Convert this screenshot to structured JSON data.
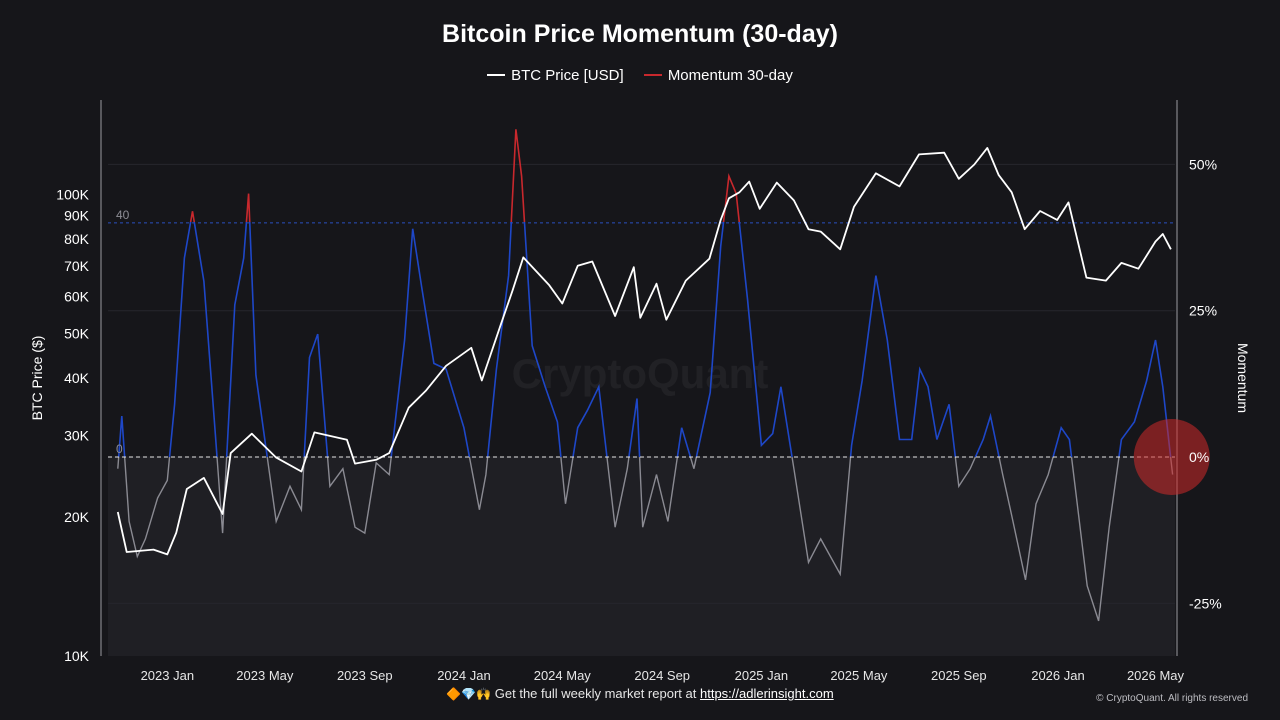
{
  "chart_data": {
    "type": "line",
    "title": "Bitcoin Price Momentum (30-day)",
    "left_axis": {
      "label": "BTC Price ($)",
      "scale": "log",
      "range": [
        10000,
        160000
      ],
      "ticks": [
        {
          "value": 10000,
          "label": "10K"
        },
        {
          "value": 20000,
          "label": "20K"
        },
        {
          "value": 30000,
          "label": "30K"
        },
        {
          "value": 40000,
          "label": "40K"
        },
        {
          "value": 50000,
          "label": "50K"
        },
        {
          "value": 60000,
          "label": "60K"
        },
        {
          "value": 70000,
          "label": "70K"
        },
        {
          "value": 80000,
          "label": "80K"
        },
        {
          "value": 90000,
          "label": "90K"
        },
        {
          "value": 100000,
          "label": "100K"
        }
      ]
    },
    "right_axis": {
      "label": "Momentum",
      "range": [
        -34,
        61
      ],
      "ticks": [
        {
          "value": 50,
          "label": "50%"
        },
        {
          "value": 25,
          "label": "25%"
        },
        {
          "value": 0,
          "label": "0%"
        },
        {
          "value": -25,
          "label": "-25%"
        }
      ]
    },
    "x_axis": {
      "range": [
        "2022-10-20",
        "2026-05-25"
      ],
      "ticks": [
        {
          "date": "2023-01-01",
          "label": "2023 Jan"
        },
        {
          "date": "2023-05-01",
          "label": "2023 May"
        },
        {
          "date": "2023-09-01",
          "label": "2023 Sep"
        },
        {
          "date": "2024-01-01",
          "label": "2024 Jan"
        },
        {
          "date": "2024-05-01",
          "label": "2024 May"
        },
        {
          "date": "2024-09-01",
          "label": "2024 Sep"
        },
        {
          "date": "2025-01-01",
          "label": "2025 Jan"
        },
        {
          "date": "2025-05-01",
          "label": "2025 May"
        },
        {
          "date": "2025-09-01",
          "label": "2025 Sep"
        },
        {
          "date": "2026-01-01",
          "label": "2026 Jan"
        },
        {
          "date": "2026-05-01",
          "label": "2026 May"
        }
      ]
    },
    "reference_lines": [
      {
        "value": 40,
        "label": "40"
      },
      {
        "value": 0,
        "label": "0"
      }
    ],
    "series": [
      {
        "name": "BTC Price [USD]",
        "axis": "left",
        "color": "#ffffff",
        "points": [
          [
            "2022-11-01",
            20500
          ],
          [
            "2022-11-12",
            16800
          ],
          [
            "2022-12-15",
            17000
          ],
          [
            "2023-01-01",
            16600
          ],
          [
            "2023-01-12",
            18500
          ],
          [
            "2023-01-25",
            23000
          ],
          [
            "2023-02-15",
            24300
          ],
          [
            "2023-03-10",
            20300
          ],
          [
            "2023-03-20",
            27500
          ],
          [
            "2023-04-15",
            30300
          ],
          [
            "2023-05-15",
            26900
          ],
          [
            "2023-06-15",
            25100
          ],
          [
            "2023-07-01",
            30500
          ],
          [
            "2023-08-10",
            29400
          ],
          [
            "2023-08-20",
            26100
          ],
          [
            "2023-09-15",
            26600
          ],
          [
            "2023-10-01",
            27500
          ],
          [
            "2023-10-25",
            34500
          ],
          [
            "2023-11-15",
            37500
          ],
          [
            "2023-12-10",
            42500
          ],
          [
            "2024-01-10",
            46500
          ],
          [
            "2024-01-23",
            39500
          ],
          [
            "2024-02-15",
            52000
          ],
          [
            "2024-03-01",
            62000
          ],
          [
            "2024-03-14",
            73000
          ],
          [
            "2024-04-15",
            63500
          ],
          [
            "2024-05-01",
            58000
          ],
          [
            "2024-05-20",
            70000
          ],
          [
            "2024-06-07",
            71500
          ],
          [
            "2024-07-05",
            54500
          ],
          [
            "2024-07-28",
            69500
          ],
          [
            "2024-08-05",
            54000
          ],
          [
            "2024-08-25",
            64000
          ],
          [
            "2024-09-06",
            53500
          ],
          [
            "2024-09-30",
            65000
          ],
          [
            "2024-10-29",
            72500
          ],
          [
            "2024-11-12",
            88000
          ],
          [
            "2024-11-22",
            98000
          ],
          [
            "2024-12-05",
            101000
          ],
          [
            "2024-12-17",
            106500
          ],
          [
            "2024-12-30",
            93000
          ],
          [
            "2025-01-20",
            106000
          ],
          [
            "2025-02-10",
            97000
          ],
          [
            "2025-02-28",
            84000
          ],
          [
            "2025-03-15",
            83000
          ],
          [
            "2025-04-08",
            76000
          ],
          [
            "2025-04-25",
            94000
          ],
          [
            "2025-05-22",
            111000
          ],
          [
            "2025-06-20",
            104000
          ],
          [
            "2025-07-14",
            122000
          ],
          [
            "2025-08-14",
            123000
          ],
          [
            "2025-09-01",
            108000
          ],
          [
            "2025-09-20",
            116000
          ],
          [
            "2025-10-06",
            126000
          ],
          [
            "2025-10-20",
            110000
          ],
          [
            "2025-11-05",
            101000
          ],
          [
            "2025-11-21",
            84000
          ],
          [
            "2025-12-10",
            92000
          ],
          [
            "2025-12-31",
            88000
          ],
          [
            "2026-01-14",
            96000
          ],
          [
            "2026-02-05",
            66000
          ],
          [
            "2026-03-01",
            65000
          ],
          [
            "2026-03-20",
            71000
          ],
          [
            "2026-04-10",
            69000
          ],
          [
            "2026-05-01",
            79000
          ],
          [
            "2026-05-10",
            82000
          ],
          [
            "2026-05-20",
            76000
          ]
        ]
      },
      {
        "name": "Momentum 30-day",
        "axis": "right",
        "color": "#c8282d",
        "points": [
          [
            "2022-11-01",
            -2
          ],
          [
            "2022-11-06",
            7
          ],
          [
            "2022-11-15",
            -11
          ],
          [
            "2022-11-25",
            -17
          ],
          [
            "2022-12-05",
            -14
          ],
          [
            "2022-12-20",
            -7
          ],
          [
            "2023-01-01",
            -4
          ],
          [
            "2023-01-10",
            9
          ],
          [
            "2023-01-22",
            34
          ],
          [
            "2023-02-01",
            42
          ],
          [
            "2023-02-15",
            30
          ],
          [
            "2023-03-01",
            4
          ],
          [
            "2023-03-10",
            -13
          ],
          [
            "2023-03-25",
            26
          ],
          [
            "2023-04-05",
            34
          ],
          [
            "2023-04-11",
            45
          ],
          [
            "2023-04-20",
            14
          ],
          [
            "2023-05-01",
            3
          ],
          [
            "2023-05-15",
            -11
          ],
          [
            "2023-06-01",
            -5
          ],
          [
            "2023-06-15",
            -9
          ],
          [
            "2023-06-25",
            17
          ],
          [
            "2023-07-05",
            21
          ],
          [
            "2023-07-20",
            -5
          ],
          [
            "2023-08-05",
            -2
          ],
          [
            "2023-08-20",
            -12
          ],
          [
            "2023-09-01",
            -13
          ],
          [
            "2023-09-15",
            -1
          ],
          [
            "2023-10-01",
            -3
          ],
          [
            "2023-10-20",
            20
          ],
          [
            "2023-10-30",
            39
          ],
          [
            "2023-11-10",
            29
          ],
          [
            "2023-11-25",
            16
          ],
          [
            "2023-12-10",
            15
          ],
          [
            "2024-01-01",
            5
          ],
          [
            "2024-01-20",
            -9
          ],
          [
            "2024-01-28",
            -3
          ],
          [
            "2024-02-10",
            15
          ],
          [
            "2024-02-25",
            31
          ],
          [
            "2024-03-05",
            56
          ],
          [
            "2024-03-12",
            48
          ],
          [
            "2024-03-25",
            19
          ],
          [
            "2024-04-10",
            12
          ],
          [
            "2024-04-25",
            6
          ],
          [
            "2024-05-05",
            -8
          ],
          [
            "2024-05-20",
            5
          ],
          [
            "2024-06-01",
            8
          ],
          [
            "2024-06-15",
            12
          ],
          [
            "2024-07-05",
            -12
          ],
          [
            "2024-07-20",
            -2
          ],
          [
            "2024-08-01",
            10
          ],
          [
            "2024-08-08",
            -12
          ],
          [
            "2024-08-25",
            -3
          ],
          [
            "2024-09-08",
            -11
          ],
          [
            "2024-09-25",
            5
          ],
          [
            "2024-10-10",
            -2
          ],
          [
            "2024-10-30",
            11
          ],
          [
            "2024-11-12",
            36
          ],
          [
            "2024-11-22",
            48
          ],
          [
            "2024-12-01",
            45
          ],
          [
            "2024-12-15",
            27
          ],
          [
            "2025-01-01",
            2
          ],
          [
            "2025-01-15",
            4
          ],
          [
            "2025-01-25",
            12
          ],
          [
            "2025-02-10",
            -2
          ],
          [
            "2025-02-28",
            -18
          ],
          [
            "2025-03-15",
            -14
          ],
          [
            "2025-04-08",
            -20
          ],
          [
            "2025-04-22",
            2
          ],
          [
            "2025-05-05",
            13
          ],
          [
            "2025-05-22",
            31
          ],
          [
            "2025-06-05",
            20
          ],
          [
            "2025-06-20",
            3
          ],
          [
            "2025-07-05",
            3
          ],
          [
            "2025-07-15",
            15
          ],
          [
            "2025-07-25",
            12
          ],
          [
            "2025-08-05",
            3
          ],
          [
            "2025-08-20",
            9
          ],
          [
            "2025-09-01",
            -5
          ],
          [
            "2025-09-15",
            -2
          ],
          [
            "2025-10-01",
            3
          ],
          [
            "2025-10-10",
            7
          ],
          [
            "2025-10-25",
            -3
          ],
          [
            "2025-11-05",
            -10
          ],
          [
            "2025-11-22",
            -21
          ],
          [
            "2025-12-05",
            -8
          ],
          [
            "2025-12-20",
            -3
          ],
          [
            "2026-01-05",
            5
          ],
          [
            "2026-01-15",
            3
          ],
          [
            "2026-02-06",
            -22
          ],
          [
            "2026-02-20",
            -28
          ],
          [
            "2026-03-05",
            -12
          ],
          [
            "2026-03-20",
            3
          ],
          [
            "2026-04-05",
            6
          ],
          [
            "2026-04-20",
            13
          ],
          [
            "2026-05-01",
            20
          ],
          [
            "2026-05-10",
            12
          ],
          [
            "2026-05-18",
            2
          ],
          [
            "2026-05-22",
            -3
          ]
        ]
      }
    ],
    "colors": {
      "price": "#ffffff",
      "momentum_above_40": "#c8282d",
      "momentum_positive": "#1e47c8",
      "momentum_negative": "#8a8a92",
      "reference_40": "#2a4fbf",
      "reference_0": "#ffffff",
      "highlight_circle": "#d02a2a"
    },
    "watermark": "CryptoQuant",
    "highlight": {
      "shape": "circle",
      "date": "2026-05-21",
      "momentum": 0
    }
  },
  "footer": {
    "emoji": "🔶💎🙌",
    "text": "Get the full weekly market report at",
    "link": "https://adlerinsight.com"
  },
  "copyright": "© CryptoQuant. All rights reserved"
}
